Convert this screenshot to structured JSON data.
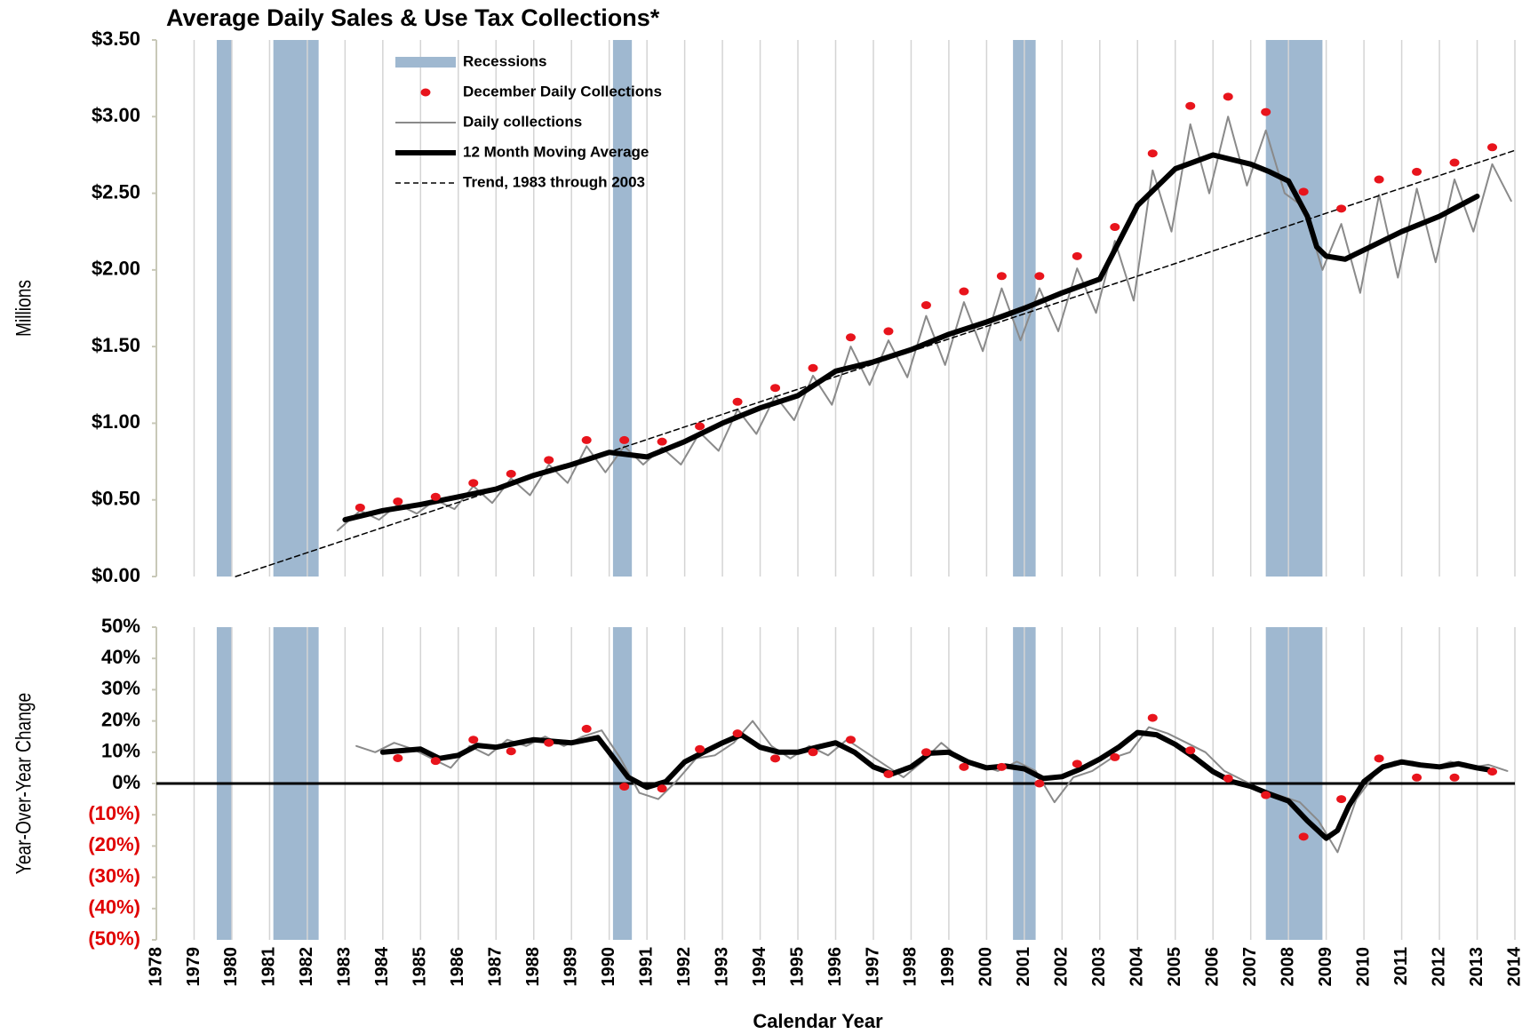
{
  "chart_data": [
    {
      "type": "line",
      "title": "Average Daily Sales & Use Tax Collections*",
      "y_label": "Millions",
      "xlim": [
        1978,
        2014
      ],
      "xticks": [
        1978,
        1979,
        1980,
        1981,
        1982,
        1983,
        1984,
        1985,
        1986,
        1987,
        1988,
        1989,
        1990,
        1991,
        1992,
        1993,
        1994,
        1995,
        1996,
        1997,
        1998,
        1999,
        2000,
        2001,
        2002,
        2003,
        2004,
        2005,
        2006,
        2007,
        2008,
        2009,
        2010,
        2011,
        2012,
        2013,
        2014
      ],
      "ylim": [
        0,
        3.5
      ],
      "yticks": [
        {
          "value": 0,
          "label": "$0.00"
        },
        {
          "value": 0.5,
          "label": "$0.50"
        },
        {
          "value": 1,
          "label": "$1.00"
        },
        {
          "value": 1.5,
          "label": "$1.50"
        },
        {
          "value": 2,
          "label": "$2.00"
        },
        {
          "value": 2.5,
          "label": "$2.50"
        },
        {
          "value": 3,
          "label": "$3.00"
        },
        {
          "value": 3.5,
          "label": "$3.50"
        }
      ],
      "grid": "x",
      "legend": "upper left",
      "series": [
        {
          "name": "Recessions",
          "kind": "band",
          "color": "#9fb8d0",
          "ranges": [
            [
              1979.6,
              1980.0
            ],
            [
              1981.1,
              1982.3
            ],
            [
              1990.1,
              1990.6
            ],
            [
              2000.7,
              2001.3
            ],
            [
              2007.4,
              2008.9
            ]
          ]
        },
        {
          "name": "December Daily Collections",
          "kind": "dots",
          "color": "#e8141c",
          "x": [
            1983.4,
            1984.4,
            1985.4,
            1986.4,
            1987.4,
            1988.4,
            1989.4,
            1990.4,
            1991.4,
            1992.4,
            1993.4,
            1994.4,
            1995.4,
            1996.4,
            1997.4,
            1998.4,
            1999.4,
            2000.4,
            2001.4,
            2002.4,
            2003.4,
            2004.4,
            2005.4,
            2006.4,
            2007.4,
            2008.4,
            2009.4,
            2010.4,
            2011.4,
            2012.4,
            2013.4
          ],
          "values": [
            0.45,
            0.49,
            0.52,
            0.61,
            0.67,
            0.76,
            0.89,
            0.89,
            0.88,
            0.98,
            1.14,
            1.23,
            1.36,
            1.56,
            1.6,
            1.77,
            1.86,
            1.96,
            1.96,
            2.09,
            2.28,
            2.76,
            3.07,
            3.13,
            3.03,
            2.51,
            2.4,
            2.59,
            2.64,
            2.7,
            2.8
          ]
        },
        {
          "name": "Daily collections",
          "kind": "line",
          "color": "#8a8a8a",
          "width": 2,
          "x": [
            1982.8,
            1983.4,
            1983.9,
            1984.4,
            1984.9,
            1985.4,
            1985.9,
            1986.4,
            1986.9,
            1987.4,
            1987.9,
            1988.4,
            1988.9,
            1989.4,
            1989.9,
            1990.4,
            1990.9,
            1991.4,
            1991.9,
            1992.4,
            1992.9,
            1993.4,
            1993.9,
            1994.4,
            1994.9,
            1995.4,
            1995.9,
            1996.4,
            1996.9,
            1997.4,
            1997.9,
            1998.4,
            1998.9,
            1999.4,
            1999.9,
            2000.4,
            2000.9,
            2001.4,
            2001.9,
            2002.4,
            2002.9,
            2003.4,
            2003.9,
            2004.4,
            2004.9,
            2005.4,
            2005.9,
            2006.4,
            2006.9,
            2007.4,
            2007.9,
            2008.4,
            2008.9,
            2009.4,
            2009.9,
            2010.4,
            2010.9,
            2011.4,
            2011.9,
            2012.4,
            2012.9,
            2013.4,
            2013.9
          ],
          "values": [
            0.3,
            0.43,
            0.37,
            0.47,
            0.41,
            0.5,
            0.44,
            0.59,
            0.48,
            0.64,
            0.53,
            0.73,
            0.61,
            0.85,
            0.68,
            0.85,
            0.73,
            0.84,
            0.73,
            0.94,
            0.82,
            1.09,
            0.93,
            1.18,
            1.02,
            1.31,
            1.12,
            1.5,
            1.25,
            1.54,
            1.3,
            1.7,
            1.38,
            1.79,
            1.47,
            1.88,
            1.54,
            1.88,
            1.6,
            2.01,
            1.72,
            2.19,
            1.8,
            2.65,
            2.25,
            2.95,
            2.5,
            3.0,
            2.55,
            2.91,
            2.5,
            2.41,
            2.0,
            2.3,
            1.85,
            2.49,
            1.95,
            2.53,
            2.05,
            2.59,
            2.25,
            2.69,
            2.45
          ]
        },
        {
          "name": "12 Month Moving Average",
          "kind": "line",
          "color": "#000000",
          "width": 6,
          "x": [
            1983,
            1984,
            1985,
            1986,
            1987,
            1988,
            1989,
            1990,
            1991,
            1992,
            1993,
            1994,
            1995,
            1996,
            1997,
            1998,
            1999,
            2000,
            2001,
            2002,
            2003,
            2004,
            2005,
            2006,
            2007,
            2007.5,
            2008,
            2008.5,
            2008.75,
            2009,
            2009.5,
            2010,
            2011,
            2012,
            2013
          ],
          "values": [
            0.37,
            0.43,
            0.47,
            0.52,
            0.57,
            0.66,
            0.73,
            0.81,
            0.78,
            0.88,
            1.0,
            1.1,
            1.18,
            1.34,
            1.4,
            1.48,
            1.58,
            1.66,
            1.75,
            1.85,
            1.94,
            2.42,
            2.66,
            2.75,
            2.69,
            2.64,
            2.58,
            2.35,
            2.15,
            2.09,
            2.07,
            2.13,
            2.25,
            2.35,
            2.48
          ]
        },
        {
          "name": "Trend, 1983 through 2003",
          "kind": "line",
          "color": "#000000",
          "width": 1.5,
          "dash": true,
          "x": [
            1980.1,
            2014
          ],
          "values": [
            0,
            2.78
          ]
        }
      ]
    },
    {
      "type": "line",
      "y_label": "Year-Over-Year Change",
      "x_label": "Calendar Year",
      "xlim": [
        1978,
        2014
      ],
      "xticks": [
        1978,
        1979,
        1980,
        1981,
        1982,
        1983,
        1984,
        1985,
        1986,
        1987,
        1988,
        1989,
        1990,
        1991,
        1992,
        1993,
        1994,
        1995,
        1996,
        1997,
        1998,
        1999,
        2000,
        2001,
        2002,
        2003,
        2004,
        2005,
        2006,
        2007,
        2008,
        2009,
        2010,
        2011,
        2012,
        2013,
        2014
      ],
      "ylim": [
        -50,
        50
      ],
      "yticks": [
        {
          "value": -50,
          "label": "(50%)"
        },
        {
          "value": -40,
          "label": "(40%)"
        },
        {
          "value": -30,
          "label": "(30%)"
        },
        {
          "value": -20,
          "label": "(20%)"
        },
        {
          "value": -10,
          "label": "(10%)"
        },
        {
          "value": 0,
          "label": "0%"
        },
        {
          "value": 10,
          "label": "10%"
        },
        {
          "value": 20,
          "label": "20%"
        },
        {
          "value": 30,
          "label": "30%"
        },
        {
          "value": 40,
          "label": "40%"
        },
        {
          "value": 50,
          "label": "50%"
        }
      ],
      "negative_label_color": "#e00000",
      "grid": "x",
      "series": [
        {
          "kind": "line",
          "color": "#8a8a8a",
          "width": 2,
          "x": [
            1983.3,
            1983.8,
            1984.3,
            1984.8,
            1985.3,
            1985.8,
            1986.3,
            1986.8,
            1987.3,
            1987.8,
            1988.3,
            1988.8,
            1989.3,
            1989.8,
            1990.3,
            1990.8,
            1991.3,
            1991.8,
            1992.3,
            1992.8,
            1993.3,
            1993.8,
            1994.3,
            1994.8,
            1995.3,
            1995.8,
            1996.3,
            1996.8,
            1997.3,
            1997.8,
            1998.3,
            1998.8,
            1999.3,
            1999.8,
            2000.3,
            2000.8,
            2001.3,
            2001.8,
            2002.3,
            2002.8,
            2003.3,
            2003.8,
            2004.3,
            2004.8,
            2005.3,
            2005.8,
            2006.3,
            2006.8,
            2007.3,
            2007.8,
            2008.3,
            2008.8,
            2009.3,
            2009.8,
            2010.3,
            2010.8,
            2011.3,
            2011.8,
            2012.3,
            2012.8,
            2013.3,
            2013.8
          ],
          "values": [
            12,
            10,
            13,
            11,
            8,
            5,
            12,
            9,
            14,
            12,
            15,
            12,
            15,
            17,
            8,
            -3,
            -5,
            1,
            8,
            9,
            13,
            20,
            12,
            8,
            12,
            9,
            14,
            10,
            6,
            2,
            7,
            13,
            8,
            6,
            4,
            7,
            4,
            -6,
            2,
            4,
            8,
            10,
            18,
            16,
            13,
            10,
            4,
            1,
            -2,
            -4,
            -6,
            -12,
            -22,
            -5,
            3,
            7,
            7,
            5,
            7,
            5,
            6,
            4
          ]
        },
        {
          "kind": "line",
          "color": "#000000",
          "width": 6,
          "x": [
            1984,
            1985,
            1985.5,
            1986,
            1986.5,
            1987,
            1988,
            1989,
            1989.7,
            1990,
            1990.5,
            1991,
            1991.5,
            1992,
            1992.5,
            1993,
            1993.5,
            1994,
            1994.5,
            1995,
            1995.5,
            1996,
            1996.5,
            1997,
            1997.5,
            1998,
            1998.5,
            1999,
            1999.5,
            2000,
            2000.5,
            2001,
            2001.5,
            2002,
            2002.5,
            2003,
            2003.5,
            2004,
            2004.5,
            2005,
            2005.5,
            2006,
            2006.5,
            2007,
            2007.5,
            2008,
            2008.5,
            2009,
            2009.3,
            2009.6,
            2010,
            2010.5,
            2011,
            2011.5,
            2012,
            2012.5,
            2013,
            2013.3
          ],
          "values": [
            10,
            11,
            8,
            9,
            12.2,
            11.6,
            14,
            13,
            14.7,
            10,
            2,
            -1.2,
            0.6,
            6.9,
            10,
            13,
            15.6,
            11.6,
            10,
            10,
            11.6,
            13,
            10,
            5.3,
            3.1,
            5.3,
            9.7,
            10,
            6.9,
            5,
            5.6,
            4.7,
            1.6,
            2.2,
            4.7,
            7.8,
            11.6,
            16.3,
            15.6,
            12.5,
            8.4,
            3.8,
            0.6,
            -0.9,
            -3.4,
            -5.6,
            -11.9,
            -17.5,
            -15,
            -7.2,
            0.6,
            5.3,
            6.9,
            5.9,
            5.3,
            6.3,
            5,
            4.4
          ]
        },
        {
          "kind": "dots",
          "color": "#e8141c",
          "x": [
            1984.4,
            1985.4,
            1986.4,
            1987.4,
            1988.4,
            1989.4,
            1990.4,
            1991.4,
            1992.4,
            1993.4,
            1994.4,
            1995.4,
            1996.4,
            1997.4,
            1998.4,
            1999.4,
            2000.4,
            2001.4,
            2002.4,
            2003.4,
            2004.4,
            2005.4,
            2006.4,
            2007.4,
            2008.4,
            2009.4,
            2010.4,
            2011.4,
            2012.4,
            2013.4
          ],
          "values": [
            8.1,
            7.2,
            14,
            10.3,
            13,
            17.5,
            -1,
            -1.6,
            11,
            16,
            8,
            10,
            14,
            3,
            10,
            5.3,
            5.3,
            0,
            6.3,
            8.4,
            21,
            10.6,
            1.6,
            -3.7,
            -17,
            -5,
            8,
            1.9,
            1.9,
            3.8
          ]
        }
      ]
    }
  ]
}
